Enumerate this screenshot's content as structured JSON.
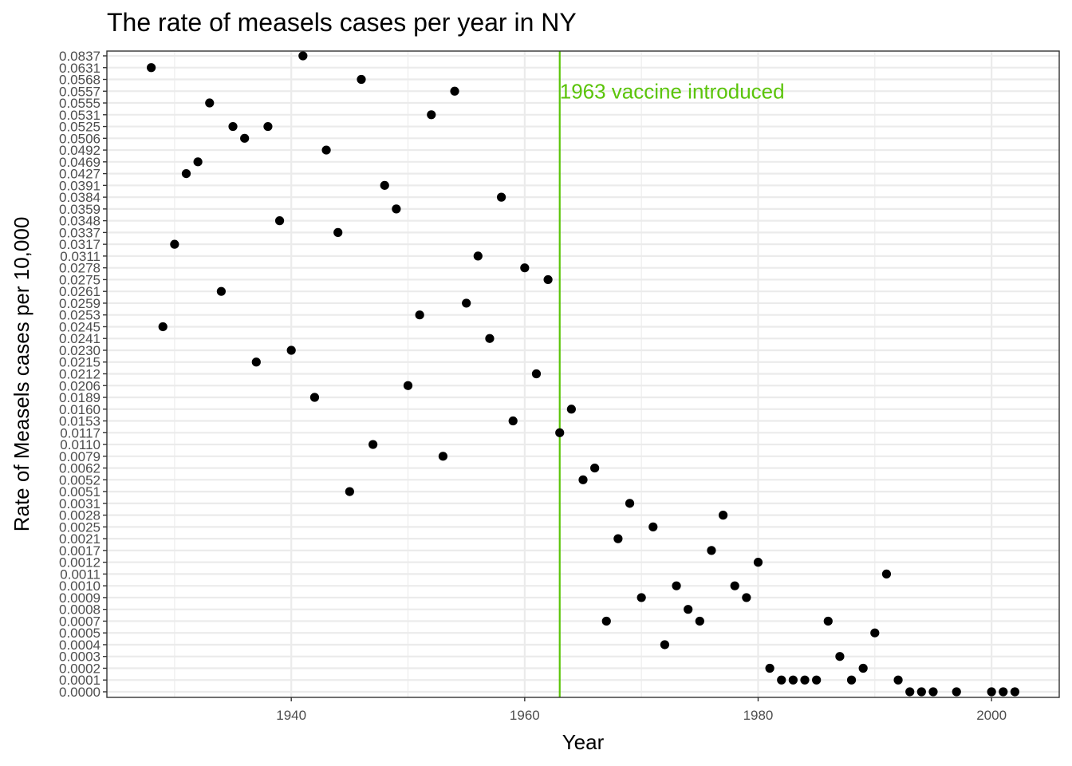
{
  "chart_data": {
    "type": "scatter",
    "title": "The rate of measels cases per year in NY",
    "xlabel": "Year",
    "ylabel": "Rate of Measels cases per 10,000",
    "x_ticks": [
      1940,
      1960,
      1980,
      2000
    ],
    "xlim": [
      1924.2,
      2005.8
    ],
    "y_scale": "categorical",
    "y_levels": [
      "0.0000",
      "0.0001",
      "0.0002",
      "0.0003",
      "0.0004",
      "0.0005",
      "0.0007",
      "0.0008",
      "0.0009",
      "0.0010",
      "0.0011",
      "0.0012",
      "0.0017",
      "0.0021",
      "0.0025",
      "0.0028",
      "0.0031",
      "0.0051",
      "0.0052",
      "0.0062",
      "0.0079",
      "0.0110",
      "0.0117",
      "0.0153",
      "0.0160",
      "0.0189",
      "0.0206",
      "0.0212",
      "0.0215",
      "0.0230",
      "0.0241",
      "0.0245",
      "0.0253",
      "0.0259",
      "0.0261",
      "0.0275",
      "0.0278",
      "0.0311",
      "0.0317",
      "0.0337",
      "0.0348",
      "0.0359",
      "0.0384",
      "0.0391",
      "0.0427",
      "0.0469",
      "0.0492",
      "0.0506",
      "0.0525",
      "0.0531",
      "0.0555",
      "0.0557",
      "0.0568",
      "0.0631",
      "0.0837"
    ],
    "grid": true,
    "series": [
      {
        "color": "#000000",
        "points": [
          {
            "x": 1928,
            "y": "0.0631"
          },
          {
            "x": 1929,
            "y": "0.0245"
          },
          {
            "x": 1930,
            "y": "0.0317"
          },
          {
            "x": 1931,
            "y": "0.0427"
          },
          {
            "x": 1932,
            "y": "0.0469"
          },
          {
            "x": 1933,
            "y": "0.0555"
          },
          {
            "x": 1934,
            "y": "0.0261"
          },
          {
            "x": 1935,
            "y": "0.0525"
          },
          {
            "x": 1936,
            "y": "0.0506"
          },
          {
            "x": 1937,
            "y": "0.0215"
          },
          {
            "x": 1938,
            "y": "0.0525"
          },
          {
            "x": 1939,
            "y": "0.0348"
          },
          {
            "x": 1940,
            "y": "0.0230"
          },
          {
            "x": 1941,
            "y": "0.0837"
          },
          {
            "x": 1942,
            "y": "0.0189"
          },
          {
            "x": 1943,
            "y": "0.0492"
          },
          {
            "x": 1944,
            "y": "0.0337"
          },
          {
            "x": 1945,
            "y": "0.0051"
          },
          {
            "x": 1946,
            "y": "0.0568"
          },
          {
            "x": 1947,
            "y": "0.0110"
          },
          {
            "x": 1948,
            "y": "0.0391"
          },
          {
            "x": 1949,
            "y": "0.0359"
          },
          {
            "x": 1950,
            "y": "0.0206"
          },
          {
            "x": 1951,
            "y": "0.0253"
          },
          {
            "x": 1952,
            "y": "0.0531"
          },
          {
            "x": 1953,
            "y": "0.0079"
          },
          {
            "x": 1954,
            "y": "0.0557"
          },
          {
            "x": 1955,
            "y": "0.0259"
          },
          {
            "x": 1956,
            "y": "0.0311"
          },
          {
            "x": 1957,
            "y": "0.0241"
          },
          {
            "x": 1958,
            "y": "0.0384"
          },
          {
            "x": 1959,
            "y": "0.0153"
          },
          {
            "x": 1960,
            "y": "0.0278"
          },
          {
            "x": 1961,
            "y": "0.0212"
          },
          {
            "x": 1962,
            "y": "0.0275"
          },
          {
            "x": 1963,
            "y": "0.0117"
          },
          {
            "x": 1964,
            "y": "0.0160"
          },
          {
            "x": 1965,
            "y": "0.0052"
          },
          {
            "x": 1966,
            "y": "0.0062"
          },
          {
            "x": 1967,
            "y": "0.0007"
          },
          {
            "x": 1968,
            "y": "0.0021"
          },
          {
            "x": 1969,
            "y": "0.0031"
          },
          {
            "x": 1970,
            "y": "0.0009"
          },
          {
            "x": 1971,
            "y": "0.0025"
          },
          {
            "x": 1972,
            "y": "0.0004"
          },
          {
            "x": 1973,
            "y": "0.0010"
          },
          {
            "x": 1974,
            "y": "0.0008"
          },
          {
            "x": 1975,
            "y": "0.0007"
          },
          {
            "x": 1976,
            "y": "0.0017"
          },
          {
            "x": 1977,
            "y": "0.0028"
          },
          {
            "x": 1978,
            "y": "0.0010"
          },
          {
            "x": 1979,
            "y": "0.0009"
          },
          {
            "x": 1980,
            "y": "0.0012"
          },
          {
            "x": 1981,
            "y": "0.0002"
          },
          {
            "x": 1982,
            "y": "0.0001"
          },
          {
            "x": 1983,
            "y": "0.0001"
          },
          {
            "x": 1984,
            "y": "0.0001"
          },
          {
            "x": 1985,
            "y": "0.0001"
          },
          {
            "x": 1986,
            "y": "0.0007"
          },
          {
            "x": 1987,
            "y": "0.0003"
          },
          {
            "x": 1988,
            "y": "0.0001"
          },
          {
            "x": 1989,
            "y": "0.0002"
          },
          {
            "x": 1990,
            "y": "0.0005"
          },
          {
            "x": 1991,
            "y": "0.0011"
          },
          {
            "x": 1992,
            "y": "0.0001"
          },
          {
            "x": 1993,
            "y": "0.0000"
          },
          {
            "x": 1994,
            "y": "0.0000"
          },
          {
            "x": 1995,
            "y": "0.0000"
          },
          {
            "x": 1997,
            "y": "0.0000"
          },
          {
            "x": 2000,
            "y": "0.0000"
          },
          {
            "x": 2001,
            "y": "0.0000"
          },
          {
            "x": 2002,
            "y": "0.0000"
          }
        ]
      }
    ],
    "vline": {
      "x": 1963,
      "color": "#5bc40a",
      "label": "1963 vaccine introduced"
    }
  }
}
